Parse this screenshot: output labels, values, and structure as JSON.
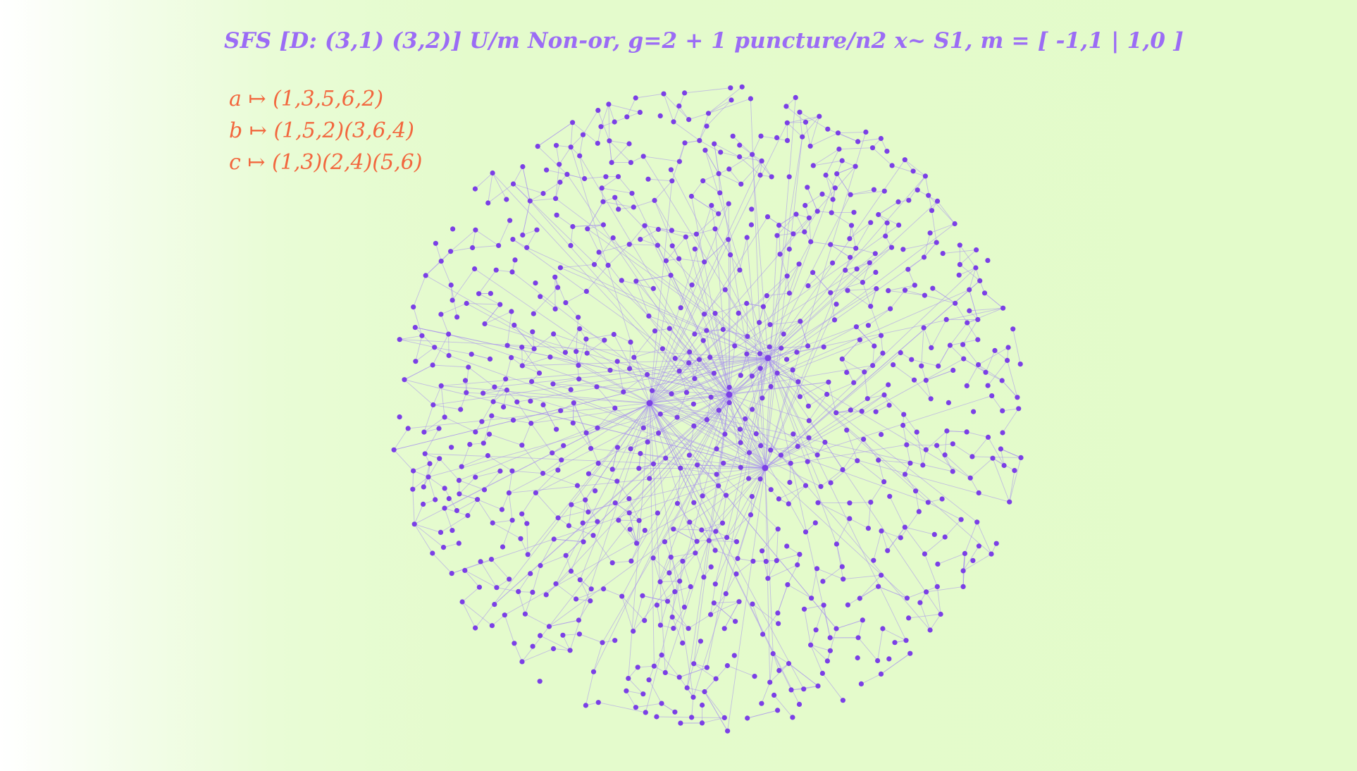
{
  "title": "SFS [D: (3,1) (3,2)] U/m Non-or, g=2 + 1 puncture/n2 x~ S1, m = [ -1,1 | 1,0 ]",
  "generators": [
    {
      "symbol": "a",
      "arrow": "↦",
      "perm": "(1,3,5,6,2)"
    },
    {
      "symbol": "b",
      "arrow": "↦",
      "perm": "(1,5,2)(3,6,4)"
    },
    {
      "symbol": "c",
      "arrow": "↦",
      "perm": "(1,3)(2,4)(5,6)"
    }
  ],
  "colors": {
    "title": "#9b6cf5",
    "generators": "#f2673e",
    "node": "#7b3fe6",
    "edge": "#a58cf0"
  }
}
